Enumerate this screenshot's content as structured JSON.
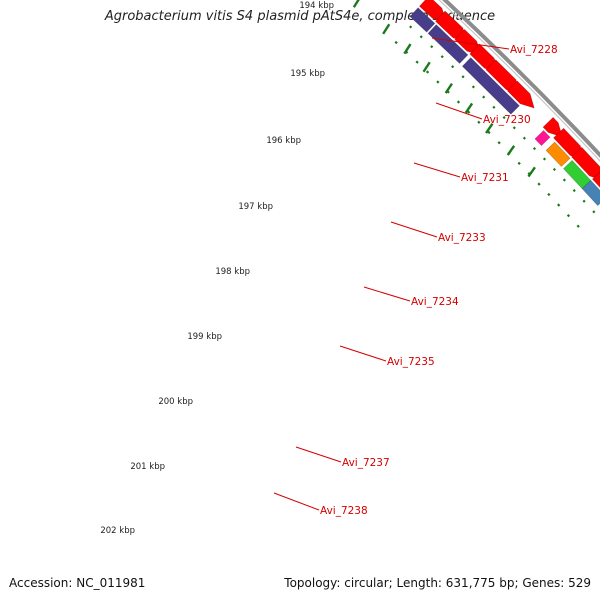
{
  "title": "Agrobacterium vitis S4 plasmid pAtS4e, complete sequence",
  "footer": {
    "accession": "Accession: NC_011981",
    "topology": "Topology: circular; Length: 631,775 bp; Genes: 529"
  },
  "colors": {
    "cds_forward": "#ff0000",
    "cds_reverse": "#483d8b",
    "tick_green": "#1a7a1a",
    "label_red": "#d40000",
    "backbone": "#8c8c8c",
    "magenta": "#ff1493",
    "orange": "#ff8c00",
    "green": "#32cd32",
    "steelblue": "#4682b4"
  },
  "scale_labels": [
    "194 kbp",
    "195 kbp",
    "196 kbp",
    "197 kbp",
    "198 kbp",
    "199 kbp",
    "200 kbp",
    "201 kbp",
    "202 kbp"
  ],
  "gene_labels": [
    "Avi_7228",
    "Avi_7230",
    "Avi_7231",
    "Avi_7233",
    "Avi_7234",
    "Avi_7235",
    "Avi_7237",
    "Avi_7238"
  ]
}
